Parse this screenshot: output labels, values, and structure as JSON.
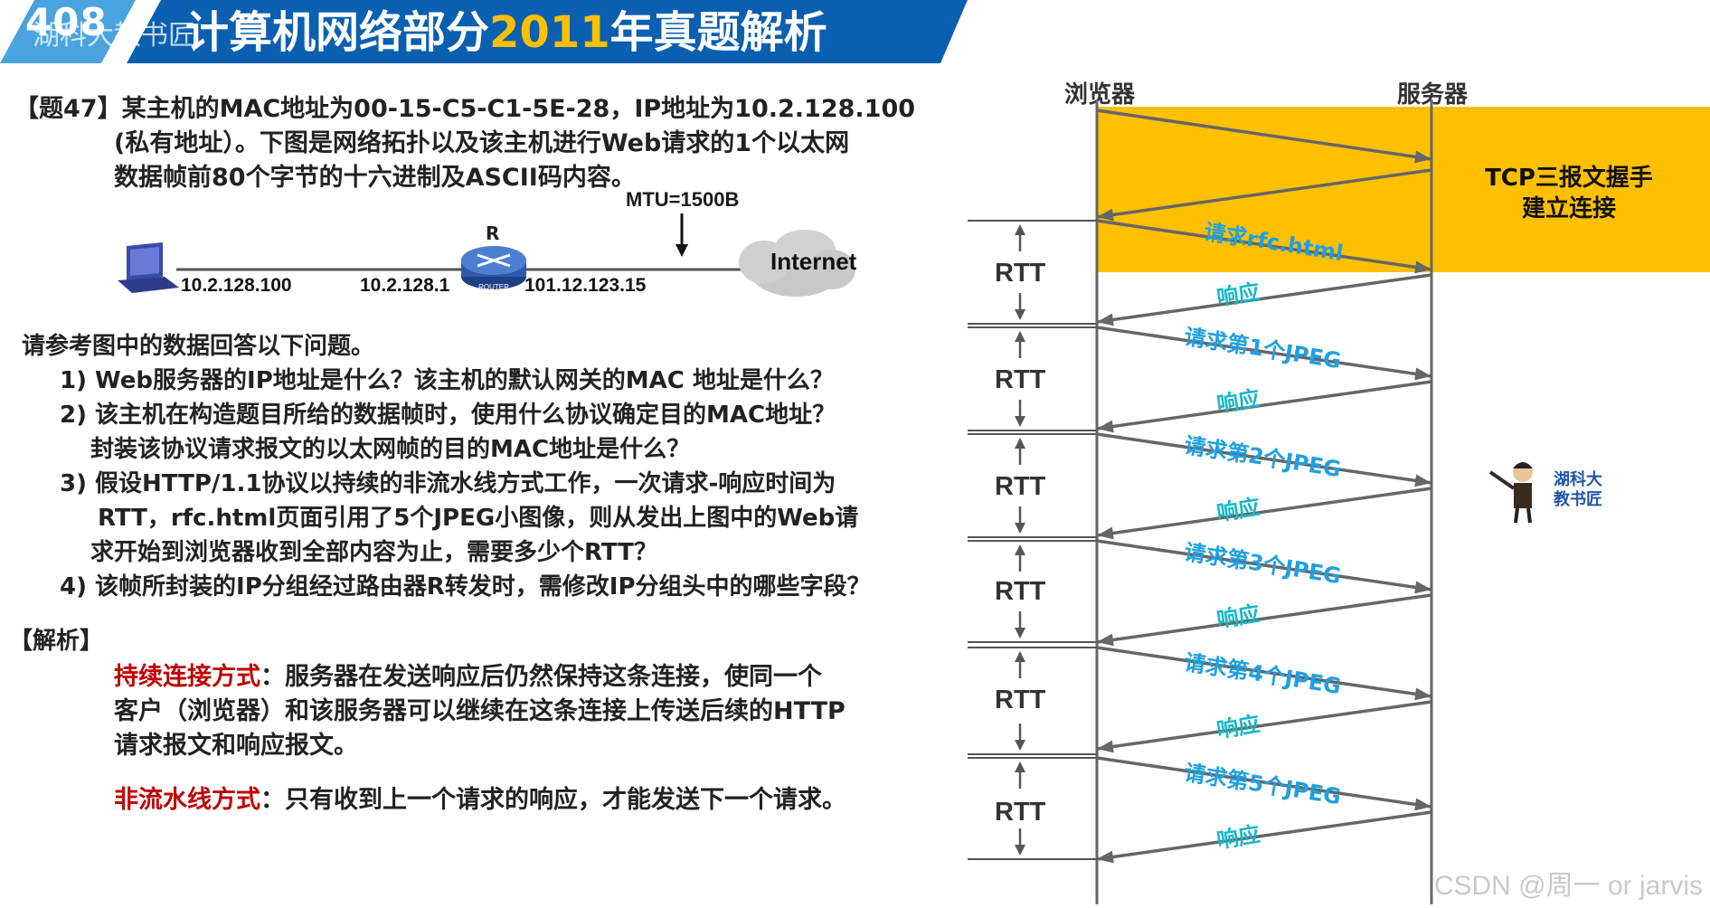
{
  "header": {
    "number": "408",
    "watermark": "湖科大教书匠",
    "title_prefix": "计算机网络部分",
    "title_year": "2011",
    "title_suffix": "年真题解析",
    "colors": {
      "band": "#0a5fb0",
      "year": "#ffc000"
    }
  },
  "question": {
    "line1": "【题47】某主机的MAC地址为00-15-C5-C1-5E-28，IP地址为10.2.128.100",
    "line2": "(私有地址）。下图是网络拓扑以及该主机进行Web请求的1个以太网",
    "line3": "数据帧前80个字节的十六进制及ASCII码内容。"
  },
  "topology": {
    "mtu": "MTU=1500B",
    "router_label": "R",
    "router_tag": "ROUTER",
    "host_ip": "10.2.128.100",
    "router_lan_ip": "10.2.128.1",
    "router_wan_ip": "101.12.123.15",
    "internet": "Internet"
  },
  "prompt": "请参考图中的数据回答以下问题。",
  "subquestions": {
    "q1": "1) Web服务器的IP地址是什么？该主机的默认网关的MAC 地址是什么？",
    "q2a": "2) 该主机在构造题目所给的数据帧时，使用什么协议确定目的MAC地址？",
    "q2b": "封装该协议请求报文的以太网帧的目的MAC地址是什么？",
    "q3a": "3) 假设HTTP/1.1协议以持续的非流水线方式工作，一次请求-响应时间为",
    "q3b": "RTT，rfc.html页面引用了5个JPEG小图像，则从发出上图中的Web请",
    "q3c": "求开始到浏览器收到全部内容为止，需要多少个RTT？",
    "q4": "4) 该帧所封装的IP分组经过路由器R转发时，需修改IP分组头中的哪些字段？"
  },
  "analysis": {
    "heading": "【解析】",
    "persistent_term": "持续连接方式",
    "persistent_l1": "：服务器在发送响应后仍然保持这条连接，使同一个",
    "persistent_l2": "客户（浏览器）和该服务器可以继续在这条连接上传送后续的HTTP",
    "persistent_l3": "请求报文和响应报文。",
    "nonpipe_term": "非流水线方式",
    "nonpipe_text": "：只有收到上一个请求的响应，才能发送下一个请求。"
  },
  "timeline": {
    "browser": "浏览器",
    "server": "服务器",
    "tcp_line1": "TCP三报文握手",
    "tcp_line2": "建立连接",
    "rtt_label": "RTT",
    "requests": [
      "请求rfc.html",
      "请求第1个JPEG",
      "请求第2个JPEG",
      "请求第3个JPEG",
      "请求第4个JPEG",
      "请求第5个JPEG"
    ],
    "response": "响应",
    "colors": {
      "tcp_box": "#ffc000",
      "request": "#1fa0e0",
      "response": "#17b8c8",
      "arrow": "#666666"
    }
  },
  "mascot": {
    "line1": "湖科大",
    "line2": "教书匠"
  },
  "credit": "CSDN @周一 or jarvis"
}
